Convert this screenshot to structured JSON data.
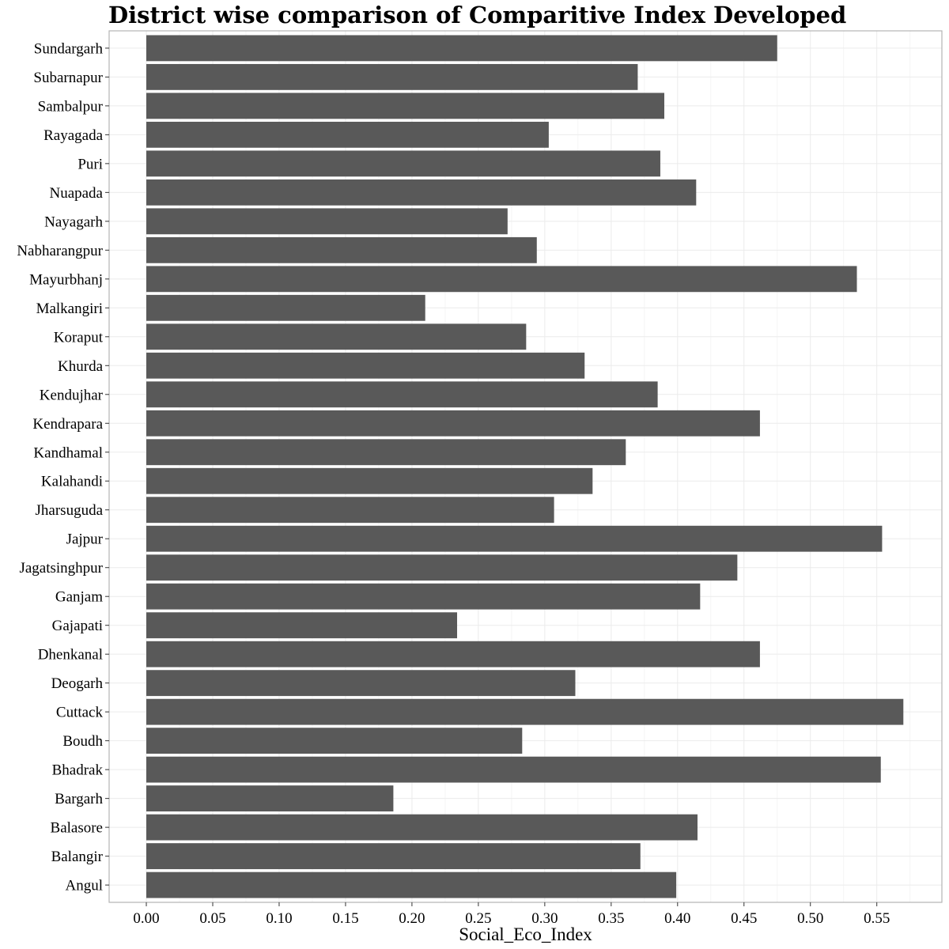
{
  "chart_data": {
    "type": "bar",
    "orientation": "horizontal",
    "title": "District wise comparison of  Comparitive Index Developed",
    "xlabel": "Social_Eco_Index",
    "ylabel": "",
    "xlim": [
      -0.028,
      0.599
    ],
    "xticks": [
      0.0,
      0.05,
      0.1,
      0.15,
      0.2,
      0.25,
      0.3,
      0.35,
      0.4,
      0.45,
      0.5,
      0.55
    ],
    "xtick_labels": [
      "0.00",
      "0.05",
      "0.10",
      "0.15",
      "0.20",
      "0.25",
      "0.30",
      "0.35",
      "0.40",
      "0.45",
      "0.50",
      "0.55"
    ],
    "grid": true,
    "bar_color": "#595959",
    "categories": [
      "Angul",
      "Balangir",
      "Balasore",
      "Bargarh",
      "Bhadrak",
      "Boudh",
      "Cuttack",
      "Deogarh",
      "Dhenkanal",
      "Gajapati",
      "Ganjam",
      "Jagatsinghpur",
      "Jajpur",
      "Jharsuguda",
      "Kalahandi",
      "Kandhamal",
      "Kendrapara",
      "Kendujhar",
      "Khurda",
      "Koraput",
      "Malkangiri",
      "Mayurbhanj",
      "Nabharangpur",
      "Nayagarh",
      "Nuapada",
      "Puri",
      "Rayagada",
      "Sambalpur",
      "Subarnapur",
      "Sundargarh"
    ],
    "values": [
      0.399,
      0.372,
      0.415,
      0.186,
      0.553,
      0.283,
      0.57,
      0.323,
      0.462,
      0.234,
      0.417,
      0.445,
      0.554,
      0.307,
      0.336,
      0.361,
      0.462,
      0.385,
      0.33,
      0.286,
      0.21,
      0.535,
      0.294,
      0.272,
      0.414,
      0.387,
      0.303,
      0.39,
      0.37,
      0.475
    ]
  }
}
